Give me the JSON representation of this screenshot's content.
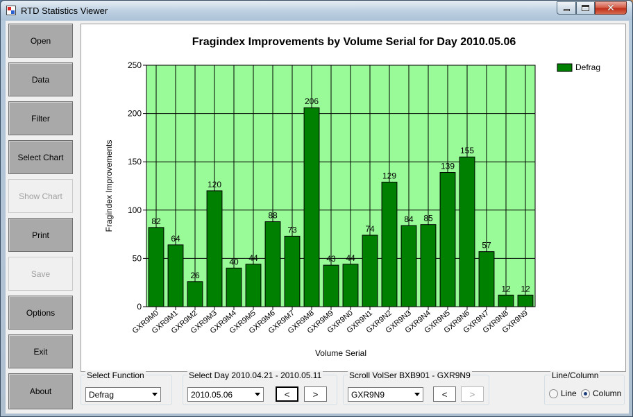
{
  "window": {
    "title": "RTD Statistics Viewer"
  },
  "sidebar": {
    "buttons": [
      {
        "label": "Open",
        "enabled": true
      },
      {
        "label": "Data",
        "enabled": true
      },
      {
        "label": "Filter",
        "enabled": true
      },
      {
        "label": "Select Chart",
        "enabled": true
      },
      {
        "label": "Show Chart",
        "enabled": false
      },
      {
        "label": "Print",
        "enabled": true
      },
      {
        "label": "Save",
        "enabled": false
      },
      {
        "label": "Options",
        "enabled": true
      },
      {
        "label": "Exit",
        "enabled": true
      },
      {
        "label": "About",
        "enabled": true
      }
    ]
  },
  "colors": {
    "plot_bg": "#98fb98",
    "bar_fill": "#008000",
    "bar_stroke": "#000000",
    "grid": "#000000"
  },
  "chart_data": {
    "type": "bar",
    "title": "Fragindex Improvements by Volume Serial for Day 2010.05.06",
    "xlabel": "Volume Serial",
    "ylabel": "Fragindex Improvements",
    "ylim": [
      0,
      250
    ],
    "yticks": [
      0,
      50,
      100,
      150,
      200,
      250
    ],
    "grid": true,
    "legend_position": "top-right",
    "categories": [
      "GXR9M0",
      "GXR9M1",
      "GXR9M2",
      "GXR9M3",
      "GXR9M4",
      "GXR9M5",
      "GXR9M6",
      "GXR9M7",
      "GXR9M8",
      "GXR9M9",
      "GXR9N0",
      "GXR9N1",
      "GXR9N2",
      "GXR9N3",
      "GXR9N4",
      "GXR9N5",
      "GXR9N6",
      "GXR9N7",
      "GXR9N8",
      "GXR9N9"
    ],
    "series": [
      {
        "name": "Defrag",
        "values": [
          82,
          64,
          26,
          120,
          40,
          44,
          88,
          73,
          206,
          43,
          44,
          74,
          129,
          84,
          85,
          139,
          155,
          57,
          12,
          12
        ]
      }
    ]
  },
  "controls": {
    "function": {
      "label": "Select Function",
      "value": "Defrag"
    },
    "day": {
      "label": "Select Day 2010.04.21 - 2010.05.11",
      "value": "2010.05.06",
      "prev": "<",
      "next": ">"
    },
    "volser": {
      "label": "Scroll VolSer BXB901 - GXR9N9",
      "value": "GXR9N9",
      "prev": "<",
      "next": ">"
    },
    "line_column": {
      "label": "Line/Column",
      "options": [
        "Line",
        "Column"
      ],
      "selected": "Column"
    }
  }
}
